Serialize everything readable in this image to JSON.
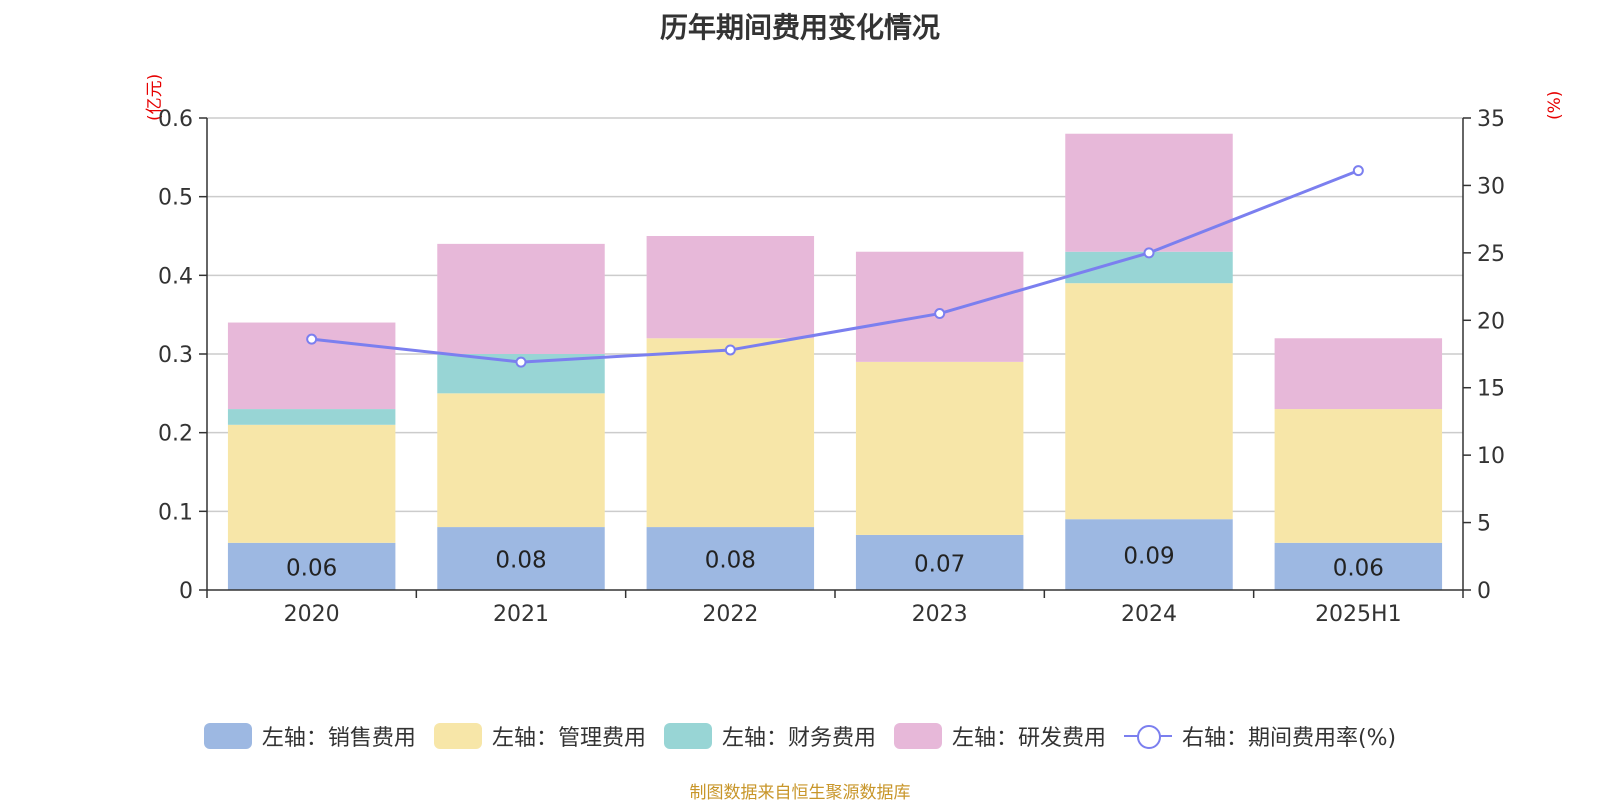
{
  "chart_data": {
    "type": "bar",
    "title": "历年期间费用变化情况",
    "categories": [
      "2020",
      "2021",
      "2022",
      "2023",
      "2024",
      "2025H1"
    ],
    "left_axis": {
      "unit": "(亿元)",
      "ylim": [
        0,
        0.6
      ],
      "ticks": [
        "0",
        "0.1",
        "0.2",
        "0.3",
        "0.4",
        "0.5",
        "0.6"
      ]
    },
    "right_axis": {
      "unit": "(%)",
      "ylim": [
        0,
        35
      ],
      "ticks": [
        "0",
        "5",
        "10",
        "15",
        "20",
        "25",
        "30",
        "35"
      ]
    },
    "series": [
      {
        "name": "左轴：销售费用",
        "kind": "bar",
        "stack": "left",
        "color": "#9db8e2",
        "values": [
          0.06,
          0.08,
          0.08,
          0.07,
          0.09,
          0.06
        ],
        "labels": [
          "0.06",
          "0.08",
          "0.08",
          "0.07",
          "0.09",
          "0.06"
        ]
      },
      {
        "name": "左轴：管理费用",
        "kind": "bar",
        "stack": "left",
        "color": "#f7e6a8",
        "values": [
          0.15,
          0.17,
          0.24,
          0.22,
          0.3,
          0.17
        ]
      },
      {
        "name": "左轴：财务费用",
        "kind": "bar",
        "stack": "left",
        "color": "#98d5d5",
        "values": [
          0.02,
          0.05,
          0.0,
          0.0,
          0.04,
          0.0
        ]
      },
      {
        "name": "左轴：研发费用",
        "kind": "bar",
        "stack": "left",
        "color": "#e7b8d9",
        "values": [
          0.11,
          0.14,
          0.13,
          0.14,
          0.15,
          0.09
        ]
      },
      {
        "name": "右轴：期间费用率(%)",
        "kind": "line",
        "axis": "right",
        "color": "#7b7fef",
        "values": [
          18.6,
          16.9,
          17.8,
          20.5,
          25.0,
          31.1
        ]
      }
    ],
    "grid": true,
    "legend_position": "bottom"
  },
  "source": "制图数据来自恒生聚源数据库"
}
